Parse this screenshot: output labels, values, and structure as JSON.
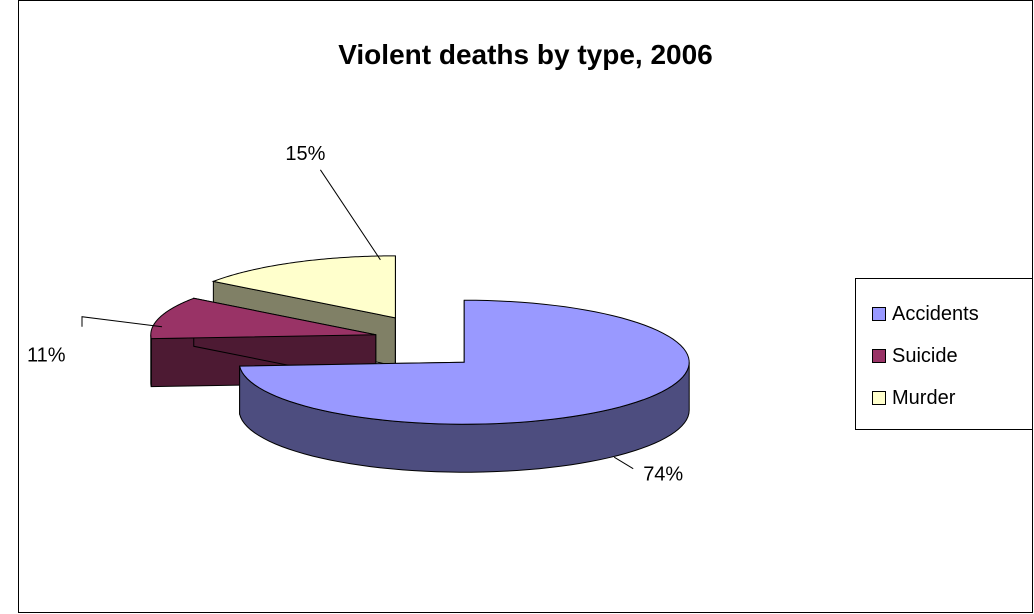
{
  "chart_data": {
    "type": "pie",
    "title": "Violent deaths by type, 2006",
    "slices": [
      {
        "label": "Accidents",
        "value": 74,
        "data_label": "74%",
        "color": "#9999FF",
        "side_color": "#4D4D7F"
      },
      {
        "label": "Suicide",
        "value": 11,
        "data_label": "11%",
        "color": "#993366",
        "side_color": "#4D1A33"
      },
      {
        "label": "Murder",
        "value": 15,
        "data_label": "15%",
        "color": "#FFFFCC",
        "side_color": "#808066"
      }
    ],
    "legend_position": "right",
    "exploded": true,
    "three_d": true
  }
}
